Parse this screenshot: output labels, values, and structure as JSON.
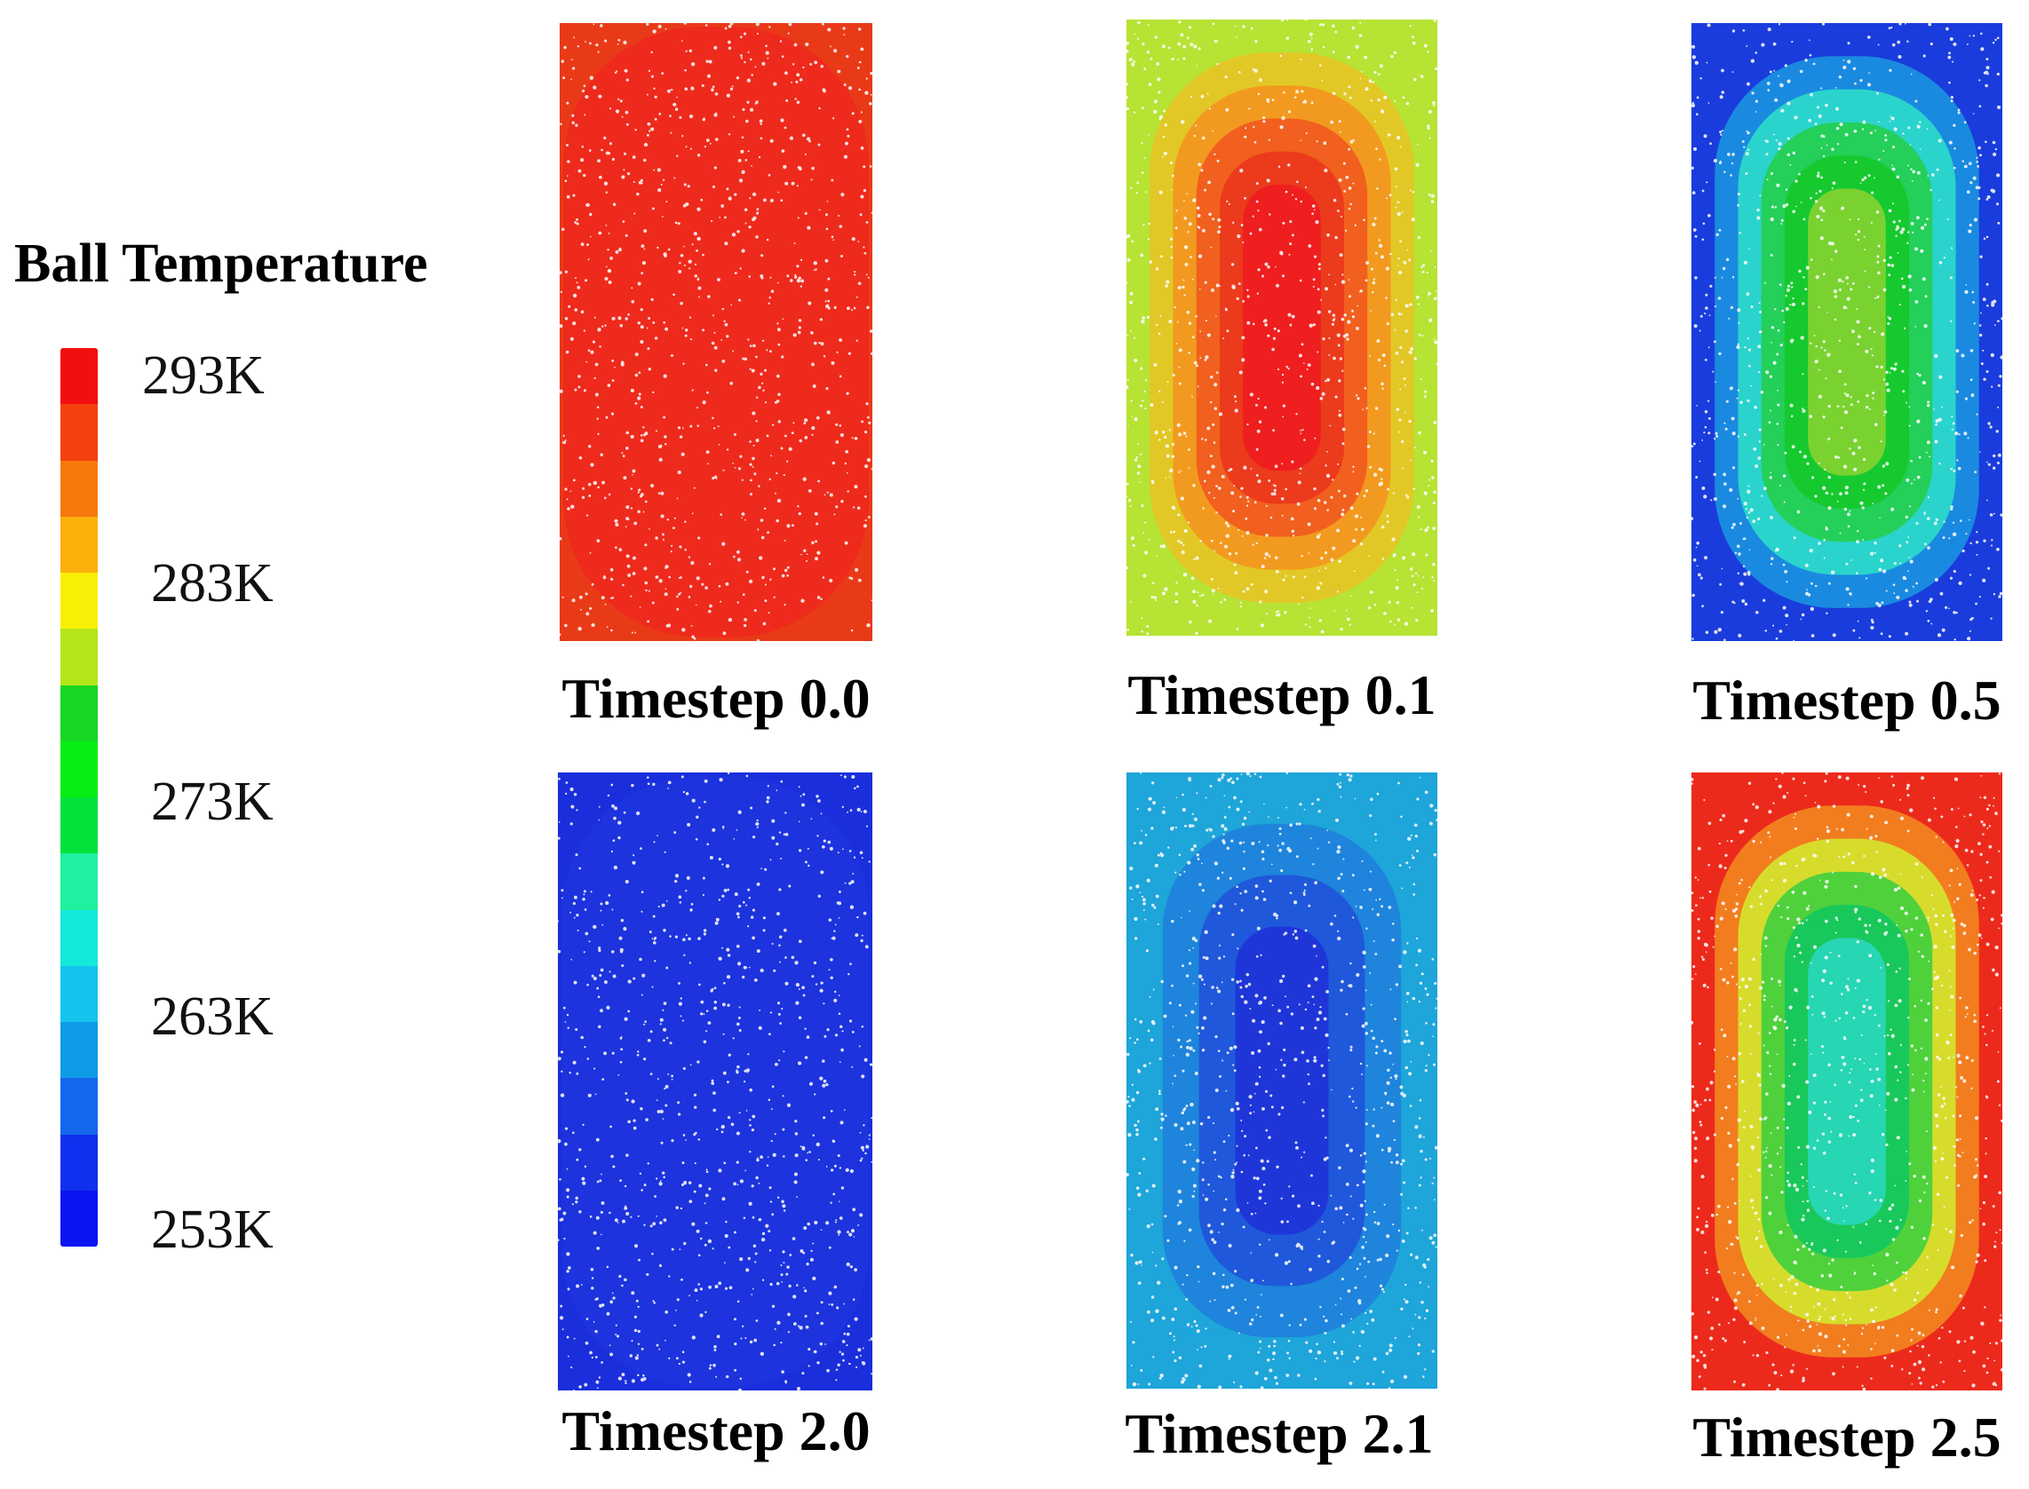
{
  "legend": {
    "title": "Ball Temperature",
    "ticks": [
      "293K",
      "283K",
      "273K",
      "263K",
      "253K"
    ],
    "colors": [
      "#f20f0f",
      "#f4400d",
      "#f6780b",
      "#fbb00c",
      "#f9ef06",
      "#b4e61a",
      "#18d722",
      "#06ee14",
      "#04e23a",
      "#20f0a0",
      "#14eada",
      "#13c4ec",
      "#0e9ce6",
      "#1368ec",
      "#0f30ee",
      "#0a14f0"
    ]
  },
  "panels": [
    {
      "caption": "Timestep 0.0",
      "outer": "#e93a18",
      "rings": [
        "#ee2a1c"
      ]
    },
    {
      "caption": "Timestep 0.1",
      "outer": "#b6e334",
      "rings": [
        "#e2c826",
        "#f29a1f",
        "#f1601e",
        "#ec3a1c",
        "#ef1e1f"
      ]
    },
    {
      "caption": "Timestep 0.5",
      "outer": "#1a3cdc",
      "rings": [
        "#1a8ae0",
        "#2ad4cc",
        "#24cf5a",
        "#16c92e",
        "#7ad231"
      ]
    },
    {
      "caption": "Timestep 2.0",
      "outer": "#1a2edc",
      "rings": [
        "#1c33dd"
      ]
    },
    {
      "caption": "Timestep 2.1",
      "outer": "#1ea5d9",
      "rings": [
        "#1e84dc",
        "#1f58da",
        "#1e36d8"
      ]
    },
    {
      "caption": "Timestep 2.5",
      "outer": "#ec2a1c",
      "rings": [
        "#f27d1f",
        "#d7dc2c",
        "#4fd13c",
        "#19c85a",
        "#27d6b3"
      ]
    }
  ]
}
